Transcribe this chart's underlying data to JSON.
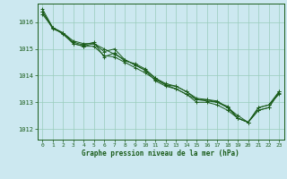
{
  "title": "Graphe pression niveau de la mer (hPa)",
  "bg_color": "#cce8f0",
  "grid_color": "#99ccbb",
  "line_color": "#1a5c1a",
  "marker_color": "#1a5c1a",
  "xlim": [
    -0.5,
    23.5
  ],
  "ylim": [
    1011.6,
    1016.7
  ],
  "xticks": [
    0,
    1,
    2,
    3,
    4,
    5,
    6,
    7,
    8,
    9,
    10,
    11,
    12,
    13,
    14,
    15,
    16,
    17,
    18,
    19,
    20,
    21,
    22,
    23
  ],
  "yticks": [
    1012,
    1013,
    1014,
    1015,
    1016
  ],
  "series": [
    [
      1016.5,
      1015.8,
      1015.55,
      1015.2,
      1015.1,
      1015.1,
      1014.75,
      1014.7,
      1014.5,
      1014.3,
      1014.1,
      1013.85,
      1013.65,
      1013.5,
      1013.3,
      1013.1,
      1013.05,
      1013.0,
      1012.85,
      1012.4,
      1012.25,
      1012.7,
      1012.8,
      1013.35
    ],
    [
      1016.4,
      1015.8,
      1015.6,
      1015.2,
      1015.1,
      1015.2,
      1014.9,
      1015.0,
      1014.6,
      1014.4,
      1014.2,
      1013.8,
      1013.6,
      1013.5,
      1013.3,
      1013.0,
      1013.0,
      1012.9,
      1012.7,
      1012.4,
      1012.25,
      1012.8,
      1012.9,
      1013.3
    ],
    [
      1016.4,
      1015.75,
      1015.6,
      1015.25,
      1015.15,
      1015.25,
      1014.7,
      1014.85,
      1014.55,
      1014.45,
      1014.25,
      1013.9,
      1013.65,
      1013.6,
      1013.4,
      1013.15,
      1013.1,
      1013.05,
      1012.8,
      1012.4,
      1012.25,
      1012.8,
      1012.9,
      1013.4
    ],
    [
      1016.3,
      1015.8,
      1015.6,
      1015.3,
      1015.2,
      1015.2,
      1015.0,
      1014.8,
      1014.6,
      1014.4,
      1014.2,
      1013.9,
      1013.7,
      1013.6,
      1013.4,
      1013.1,
      1013.1,
      1013.0,
      1012.8,
      1012.5,
      1012.25,
      1012.7,
      1012.8,
      1013.4
    ]
  ]
}
